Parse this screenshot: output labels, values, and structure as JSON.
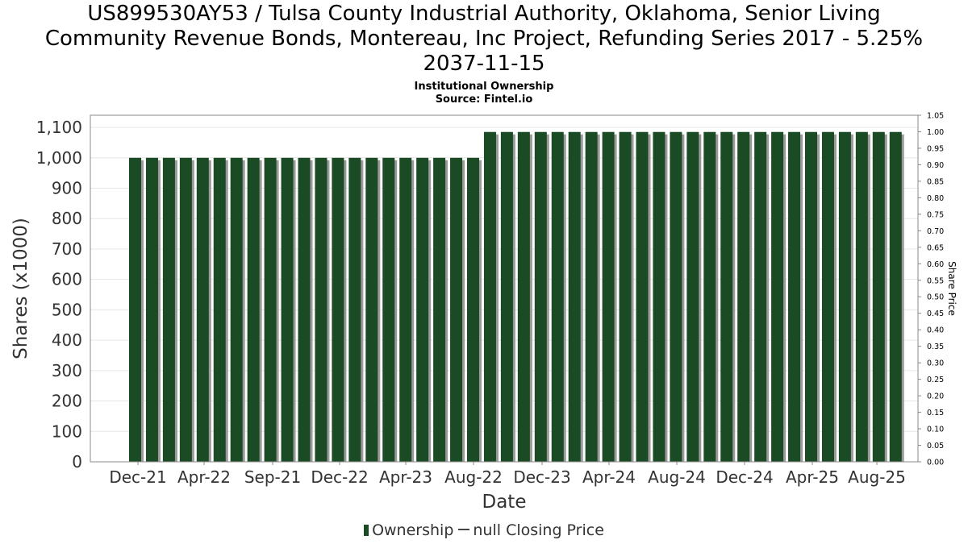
{
  "title_lines": [
    "US899530AY53 / Tulsa County Industrial Authority, Oklahoma, Senior Living",
    "Community Revenue Bonds, Montereau, Inc Project, Refunding Series 2017 - 5.25%",
    "2037-11-15"
  ],
  "subtitle_lines": [
    "Institutional Ownership",
    "Source: Fintel.io"
  ],
  "legend": {
    "ownership": "Ownership",
    "closing_price": "null Closing Price"
  },
  "colors": {
    "bar": "#1b4b25",
    "bar_shadow": "#9a9a9a",
    "grid": "#e6e6e6"
  },
  "chart_data": {
    "type": "bar",
    "xlabel": "Date",
    "ylabel": "Shares (x1000)",
    "y2label": "Share Price",
    "ylim": [
      0,
      1140
    ],
    "y2lim": [
      0,
      1.05
    ],
    "yticks": [
      0,
      100,
      200,
      300,
      400,
      500,
      600,
      700,
      800,
      900,
      1000,
      1100
    ],
    "y2ticks": [
      "0.00",
      "0.05",
      "0.10",
      "0.15",
      "0.20",
      "0.25",
      "0.30",
      "0.35",
      "0.40",
      "0.45",
      "0.50",
      "0.55",
      "0.60",
      "0.65",
      "0.70",
      "0.75",
      "0.80",
      "0.85",
      "0.90",
      "0.95",
      "1.00",
      "1.05"
    ],
    "xtick_labels": [
      "Dec-21",
      "Apr-22",
      "Sep-21",
      "Dec-22",
      "Apr-23",
      "Aug-22",
      "Dec-23",
      "Apr-24",
      "Aug-24",
      "Dec-24",
      "Apr-25",
      "Aug-25"
    ],
    "grid": true,
    "legend_position": "bottom",
    "series": [
      {
        "name": "Ownership",
        "values": [
          1000,
          1000,
          1000,
          1000,
          1000,
          1000,
          1000,
          1000,
          1000,
          1000,
          1000,
          1000,
          1000,
          1000,
          1000,
          1000,
          1000,
          1000,
          1000,
          1000,
          1000,
          1085,
          1085,
          1085,
          1085,
          1085,
          1085,
          1085,
          1085,
          1085,
          1085,
          1085,
          1085,
          1085,
          1085,
          1085,
          1085,
          1085,
          1085,
          1085,
          1085,
          1085,
          1085,
          1085,
          1085,
          1085
        ]
      }
    ]
  }
}
